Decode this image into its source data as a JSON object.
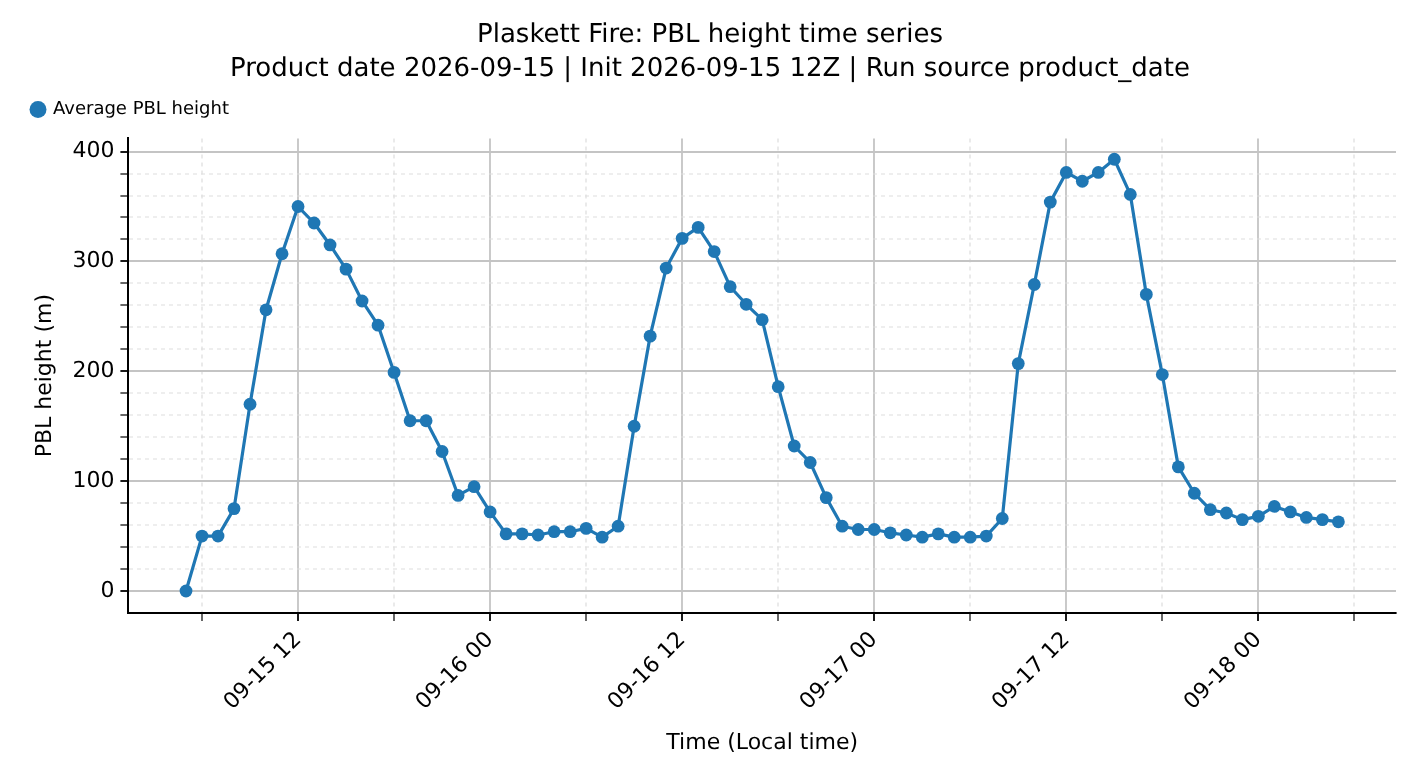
{
  "chart_data": {
    "type": "line",
    "title": "Plaskett Fire: PBL height time series",
    "subtitle": "Product date 2026-09-15 | Init 2026-09-15 12Z | Run source product_date",
    "xlabel": "Time (Local time)",
    "ylabel": "PBL height (m)",
    "x": [
      "2026-09-15T05:00",
      "2026-09-15T06:00",
      "2026-09-15T07:00",
      "2026-09-15T08:00",
      "2026-09-15T09:00",
      "2026-09-15T10:00",
      "2026-09-15T11:00",
      "2026-09-15T12:00",
      "2026-09-15T13:00",
      "2026-09-15T14:00",
      "2026-09-15T15:00",
      "2026-09-15T16:00",
      "2026-09-15T17:00",
      "2026-09-15T18:00",
      "2026-09-15T19:00",
      "2026-09-15T20:00",
      "2026-09-15T21:00",
      "2026-09-15T22:00",
      "2026-09-15T23:00",
      "2026-09-16T00:00",
      "2026-09-16T01:00",
      "2026-09-16T02:00",
      "2026-09-16T03:00",
      "2026-09-16T04:00",
      "2026-09-16T05:00",
      "2026-09-16T06:00",
      "2026-09-16T07:00",
      "2026-09-16T08:00",
      "2026-09-16T09:00",
      "2026-09-16T10:00",
      "2026-09-16T11:00",
      "2026-09-16T12:00",
      "2026-09-16T13:00",
      "2026-09-16T14:00",
      "2026-09-16T15:00",
      "2026-09-16T16:00",
      "2026-09-16T17:00",
      "2026-09-16T18:00",
      "2026-09-16T19:00",
      "2026-09-16T20:00",
      "2026-09-16T21:00",
      "2026-09-16T22:00",
      "2026-09-16T23:00",
      "2026-09-17T00:00",
      "2026-09-17T01:00",
      "2026-09-17T02:00",
      "2026-09-17T03:00",
      "2026-09-17T04:00",
      "2026-09-17T05:00",
      "2026-09-17T06:00",
      "2026-09-17T07:00",
      "2026-09-17T08:00",
      "2026-09-17T09:00",
      "2026-09-17T10:00",
      "2026-09-17T11:00",
      "2026-09-17T12:00",
      "2026-09-17T13:00",
      "2026-09-17T14:00",
      "2026-09-17T15:00",
      "2026-09-17T16:00",
      "2026-09-17T17:00",
      "2026-09-17T18:00",
      "2026-09-17T19:00",
      "2026-09-17T20:00",
      "2026-09-17T21:00",
      "2026-09-17T22:00",
      "2026-09-17T23:00",
      "2026-09-18T00:00",
      "2026-09-18T01:00",
      "2026-09-18T02:00",
      "2026-09-18T03:00",
      "2026-09-18T04:00",
      "2026-09-18T05:00"
    ],
    "series": [
      {
        "name": "Average PBL height",
        "color": "#1f77b4",
        "values": [
          0,
          50,
          50,
          75,
          170,
          256,
          307,
          350,
          335,
          315,
          293,
          264,
          242,
          199,
          155,
          155,
          127,
          87,
          95,
          72,
          52,
          52,
          51,
          54,
          54,
          57,
          49,
          59,
          150,
          232,
          294,
          321,
          331,
          309,
          277,
          261,
          247,
          186,
          132,
          117,
          85,
          59,
          56,
          56,
          53,
          51,
          49,
          52,
          49,
          49,
          50,
          66,
          207,
          279,
          354,
          381,
          373,
          381,
          393,
          361,
          270,
          197,
          113,
          89,
          74,
          71,
          65,
          68,
          77,
          72,
          67,
          65,
          63
        ]
      }
    ],
    "xlim": [
      "2026-09-15T01:24",
      "2026-09-18T08:36"
    ],
    "xticks": [
      {
        "value": "2026-09-15T06:00",
        "label": null
      },
      {
        "value": "2026-09-15T12:00",
        "label": "09-15 12"
      },
      {
        "value": "2026-09-15T18:00",
        "label": null
      },
      {
        "value": "2026-09-16T00:00",
        "label": "09-16 00"
      },
      {
        "value": "2026-09-16T06:00",
        "label": null
      },
      {
        "value": "2026-09-16T12:00",
        "label": "09-16 12"
      },
      {
        "value": "2026-09-16T18:00",
        "label": null
      },
      {
        "value": "2026-09-17T00:00",
        "label": "09-17 00"
      },
      {
        "value": "2026-09-17T06:00",
        "label": null
      },
      {
        "value": "2026-09-17T12:00",
        "label": "09-17 12"
      },
      {
        "value": "2026-09-17T18:00",
        "label": null
      },
      {
        "value": "2026-09-18T00:00",
        "label": "09-18 00"
      },
      {
        "value": "2026-09-18T06:00",
        "label": null
      }
    ],
    "ylim": [
      -20,
      412
    ],
    "yticks": [
      0,
      {
        "value": 20,
        "label": null
      },
      {
        "value": 40,
        "label": null
      },
      {
        "value": 60,
        "label": null
      },
      {
        "value": 80,
        "label": null
      },
      100,
      {
        "value": 120,
        "label": null
      },
      {
        "value": 140,
        "label": null
      },
      {
        "value": 160,
        "label": null
      },
      {
        "value": 180,
        "label": null
      },
      200,
      {
        "value": 220,
        "label": null
      },
      {
        "value": 240,
        "label": null
      },
      {
        "value": 260,
        "label": null
      },
      {
        "value": 280,
        "label": null
      },
      300,
      {
        "value": 320,
        "label": null
      },
      {
        "value": 340,
        "label": null
      },
      {
        "value": 360,
        "label": null
      },
      {
        "value": 380,
        "label": null
      },
      400
    ],
    "grid": true,
    "legend": "top left",
    "marker": "circle",
    "line_style": "solid"
  }
}
